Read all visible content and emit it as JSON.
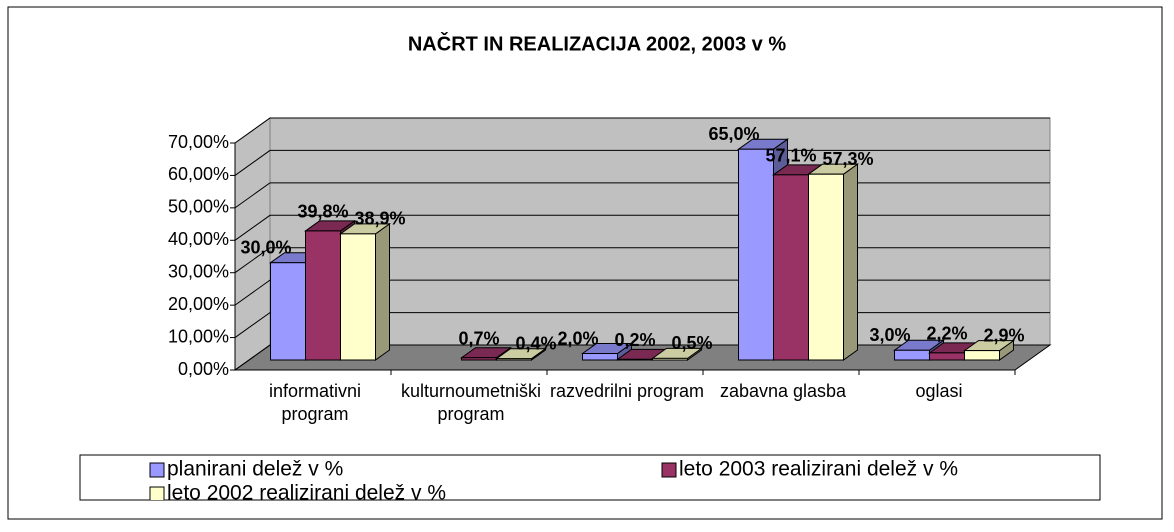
{
  "chart_data": {
    "type": "bar3d",
    "title": "NAČRT IN REALIZACIJA 2002, 2003 v %",
    "categories": [
      "informativni program",
      "kulturnoumetniški program",
      "razvedrilni program",
      "zabavna glasba",
      "oglasi"
    ],
    "series": [
      {
        "name": "planirani delež v %",
        "color": "#9999ff",
        "values": [
          30.0,
          null,
          2.0,
          65.0,
          3.0
        ],
        "value_labels": [
          "30,0%",
          null,
          "2,0%",
          "65,0%",
          "3,0%"
        ]
      },
      {
        "name": "leto 2003 realizirani delež v %",
        "color": "#993366",
        "values": [
          39.8,
          0.7,
          0.2,
          57.1,
          2.2
        ],
        "value_labels": [
          "39,8%",
          "0,7%",
          "0,2%",
          "57,1%",
          "2,2%"
        ]
      },
      {
        "name": "leto 2002 realizirani delež v %",
        "color": "#ffffcc",
        "values": [
          38.9,
          0.4,
          0.5,
          57.3,
          2.9
        ],
        "value_labels": [
          "38,9%",
          "0,4%",
          "0,5%",
          "57,3%",
          "2,9%"
        ]
      }
    ],
    "ylim": [
      0,
      70
    ],
    "yticks": [
      {
        "value": 0,
        "label": "0,00%"
      },
      {
        "value": 10,
        "label": "10,00%"
      },
      {
        "value": 20,
        "label": "20,00%"
      },
      {
        "value": 30,
        "label": "30,00%"
      },
      {
        "value": 40,
        "label": "40,00%"
      },
      {
        "value": 50,
        "label": "50,00%"
      },
      {
        "value": 60,
        "label": "60,00%"
      },
      {
        "value": 70,
        "label": "70,00%"
      }
    ],
    "grid": true,
    "legend": "bottom"
  }
}
